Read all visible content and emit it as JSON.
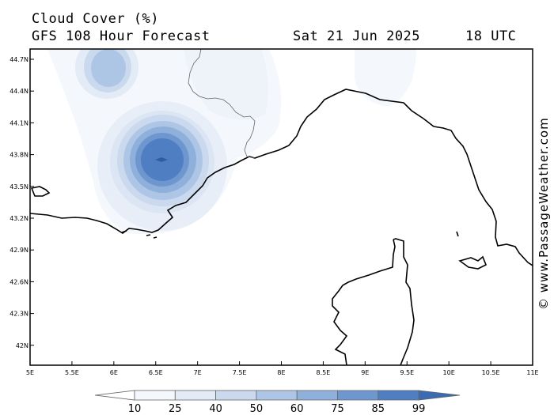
{
  "header": {
    "title": "Cloud Cover (%)",
    "subtitle": "GFS 108 Hour Forecast",
    "date": "Sat 21 Jun 2025",
    "time": "18 UTC"
  },
  "credit": "© www.PassageWeather.com",
  "axes": {
    "x_ticks": [
      "5E",
      "5.5E",
      "6E",
      "6.5E",
      "7E",
      "7.5E",
      "8E",
      "8.5E",
      "9E",
      "9.5E",
      "10E",
      "10.5E",
      "11E"
    ],
    "y_ticks": [
      "44.7N",
      "44.4N",
      "44.1N",
      "43.8N",
      "43.5N",
      "43.2N",
      "42.9N",
      "42.6N",
      "42.3N",
      "42N"
    ]
  },
  "legend": {
    "labels": [
      "10",
      "25",
      "40",
      "50",
      "60",
      "75",
      "85",
      "99"
    ],
    "colors": [
      "#ffffff",
      "#f4f7fc",
      "#e3ebf6",
      "#cad9ee",
      "#aec6e5",
      "#8fb0db",
      "#6f97cf",
      "#4f7fc2",
      "#3a6bb3"
    ]
  },
  "chart_data": {
    "type": "heatmap",
    "variable": "Cloud Cover (%)",
    "x_range": [
      5,
      11
    ],
    "y_range": [
      41.85,
      44.8
    ],
    "cloud_cells": [
      {
        "lon": 5.95,
        "lat": 44.65,
        "peak": 60
      },
      {
        "lon": 6.55,
        "lat": 43.75,
        "peak": 85
      },
      {
        "lon": 9.5,
        "lat": 44.6,
        "peak": 25
      }
    ]
  }
}
